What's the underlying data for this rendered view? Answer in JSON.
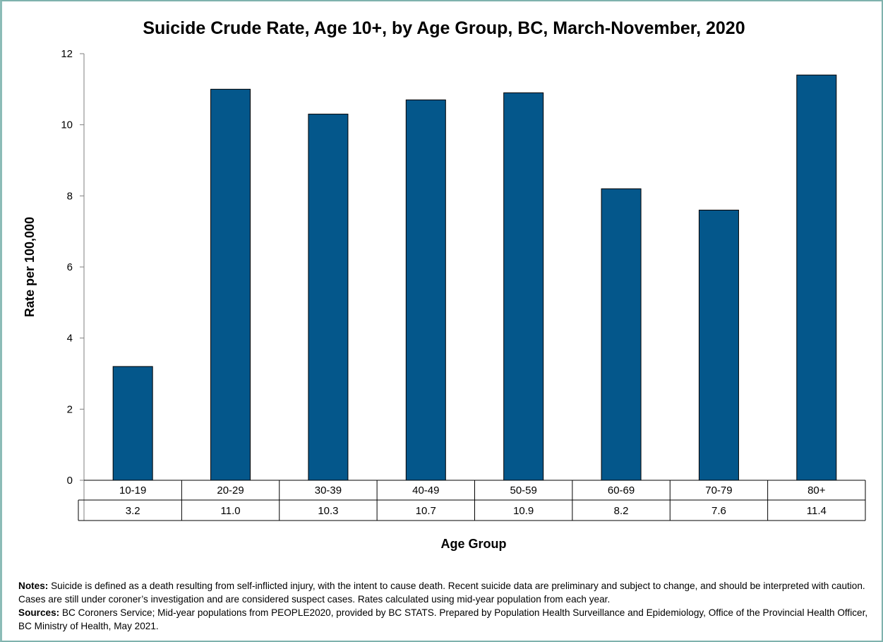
{
  "chart_data": {
    "type": "bar",
    "title": "Suicide Crude Rate, Age 10+, by Age Group, BC, March-November, 2020",
    "xlabel": "Age Group",
    "ylabel": "Rate per 100,000",
    "categories": [
      "10-19",
      "20-29",
      "30-39",
      "40-49",
      "50-59",
      "60-69",
      "70-79",
      "80+"
    ],
    "values": [
      3.2,
      11.0,
      10.3,
      10.7,
      10.9,
      8.2,
      7.6,
      11.4
    ],
    "value_labels": [
      "3.2",
      "11.0",
      "10.3",
      "10.7",
      "10.9",
      "8.2",
      "7.6",
      "11.4"
    ],
    "ylim": [
      0,
      12
    ],
    "yticks": [
      "0",
      "2",
      "4",
      "6",
      "8",
      "10",
      "12"
    ],
    "ytick_values": [
      0,
      2,
      4,
      6,
      8,
      10,
      12
    ],
    "grid": false,
    "legend": "none",
    "data_table": true,
    "bar_color": "#04578b"
  },
  "notes": {
    "notes_label": "Notes:",
    "notes_text": " Suicide is defined as a death resulting from self-inflicted injury, with the intent to cause death. Recent suicide data are preliminary and subject to change, and should be interpreted with caution. Cases are still under coroner’s investigation and are considered suspect cases. Rates calculated using mid-year population from each year.",
    "sources_label": "Sources:",
    "sources_text": " BC Coroners Service; Mid-year populations from PEOPLE2020, provided by BC STATS. Prepared by Population Health Surveillance and Epidemiology, Office of the Provincial Health Officer, BC Ministry of Health, May 2021."
  }
}
